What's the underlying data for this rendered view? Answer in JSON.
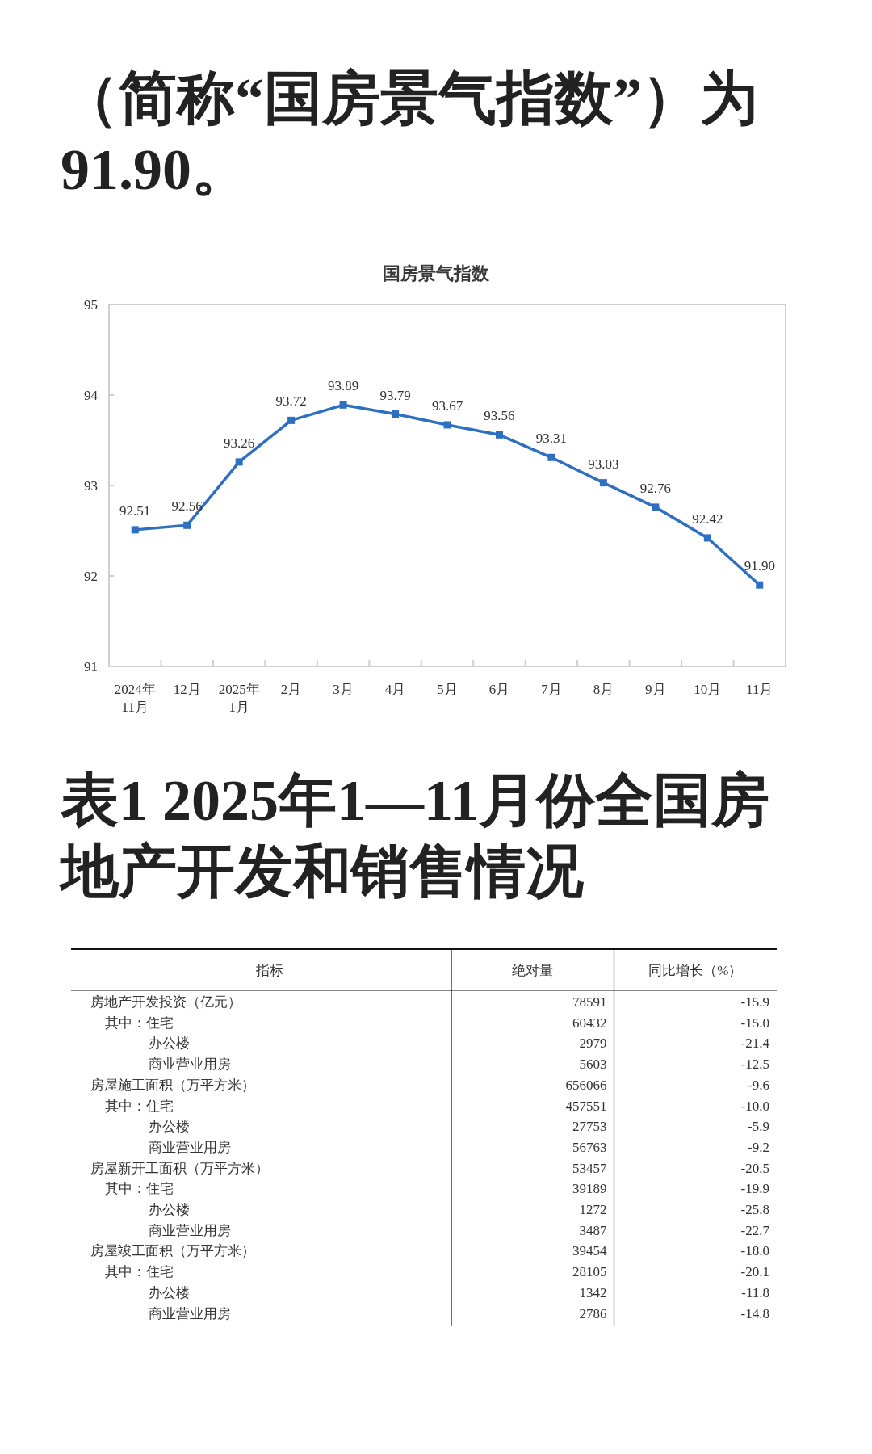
{
  "chart_data": [
    {
      "type": "line",
      "title": "国房景气指数",
      "annotations": [
        "（简称“国房景气指数”）为91.90。"
      ],
      "categories": [
        "2024年\n11月",
        "12月",
        "2025年\n1月",
        "2月",
        "3月",
        "4月",
        "5月",
        "6月",
        "7月",
        "8月",
        "9月",
        "10月",
        "11月"
      ],
      "series": [
        {
          "color": "#2e6fc2",
          "values": [
            92.51,
            92.56,
            93.26,
            93.72,
            93.89,
            93.79,
            93.67,
            93.56,
            93.31,
            93.03,
            92.76,
            92.42,
            91.9
          ],
          "value_labels": [
            "92.51",
            "92.56",
            "93.26",
            "93.72",
            "93.89",
            "93.79",
            "93.67",
            "93.56",
            "93.31",
            "93.03",
            "92.76",
            "92.42",
            "91.90"
          ]
        }
      ],
      "ylim": [
        91,
        95
      ],
      "yticks": [
        91,
        92,
        93,
        94,
        95
      ],
      "marker": "square",
      "line_style": "solid"
    },
    {
      "type": "other",
      "title": "表1 2025年1—11月份全国房地产开发和销售情况",
      "ylabel": "指标",
      "categories": [
        "房地产开发投资（亿元）",
        "其中：住宅",
        "办公楼",
        "商业营业用房",
        "房屋施工面积（万平方米）",
        "其中：住宅",
        "办公楼",
        "商业营业用房",
        "房屋新开工面积（万平方米）",
        "其中：住宅",
        "办公楼",
        "商业营业用房",
        "房屋竣工面积（万平方米）",
        "其中：住宅",
        "办公楼",
        "商业营业用房"
      ],
      "series": [
        {
          "name": "绝对量",
          "values": [
            78591,
            60432,
            2979,
            5603,
            656066,
            457551,
            27753,
            56763,
            53457,
            39189,
            1272,
            3487,
            39454,
            28105,
            1342,
            2786
          ],
          "value_labels": [
            "78591",
            "60432",
            "2979",
            "5603",
            "656066",
            "457551",
            "27753",
            "56763",
            "53457",
            "39189",
            "1272",
            "3487",
            "39454",
            "28105",
            "1342",
            "2786"
          ]
        },
        {
          "name": "同比增长（%）",
          "values": [
            -15.9,
            -15.0,
            -21.4,
            -12.5,
            -9.6,
            -10.0,
            -5.9,
            -9.2,
            -20.5,
            -19.9,
            -25.8,
            -22.7,
            -18.0,
            -20.1,
            -11.8,
            -14.8
          ],
          "value_labels": [
            "-15.9",
            "-15.0",
            "-21.4",
            "-12.5",
            "-9.6",
            "-10.0",
            "-5.9",
            "-9.2",
            "-20.5",
            "-19.9",
            "-25.8",
            "-22.7",
            "-18.0",
            "-20.1",
            "-11.8",
            "-14.8"
          ]
        }
      ]
    }
  ]
}
